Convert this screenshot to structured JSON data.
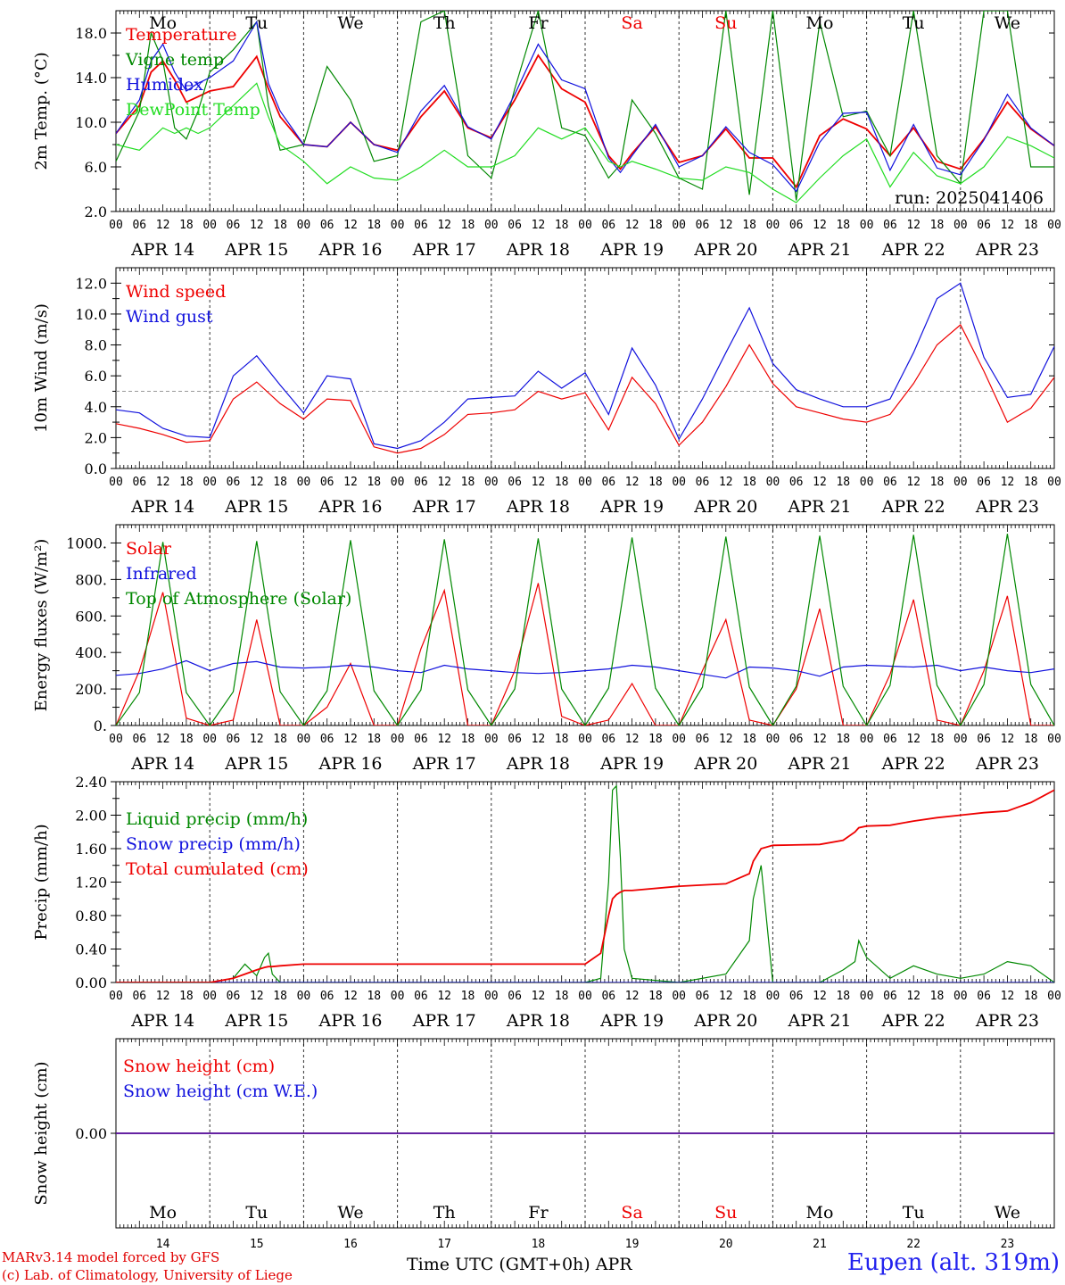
{
  "meta": {
    "credit_line1": "MARv3.14 model forced by GFS",
    "credit_line2": "(c) Lab. of Climatology, University of Liege",
    "station": "Eupen (alt. 319m)",
    "xaxis_title": "Time UTC (GMT+0h) APR",
    "run": "run: 2025041406"
  },
  "colors": {
    "red": "#ee0000",
    "green": "#008800",
    "blue": "#1111dd",
    "light_green": "#22dd22",
    "grid": "#999999",
    "weekend": "#ee0000"
  },
  "days": {
    "weekday": [
      "Mo",
      "Tu",
      "We",
      "Th",
      "Fr",
      "Sa",
      "Su",
      "Mo",
      "Tu",
      "We"
    ],
    "weekend_flags": [
      false,
      false,
      false,
      false,
      false,
      true,
      true,
      false,
      false,
      false
    ],
    "date_labels": [
      "APR 14",
      "APR 15",
      "APR 16",
      "APR 17",
      "APR 18",
      "APR 19",
      "APR 20",
      "APR 21",
      "APR 22",
      "APR 23"
    ],
    "day_numbers": [
      "14",
      "15",
      "16",
      "17",
      "18",
      "19",
      "20",
      "21",
      "22",
      "23"
    ],
    "hour_ticks": [
      "00",
      "06",
      "12",
      "18"
    ],
    "final_tick": "00"
  },
  "chart_data": [
    {
      "id": "temperature",
      "type": "line",
      "ylabel": "2m Temp. (°C)",
      "ylim": [
        2.0,
        20.0
      ],
      "yticks": [
        "2.0",
        "6.0",
        "10.0",
        "14.0",
        "18.0"
      ],
      "ytick_values": [
        2,
        6,
        10,
        14,
        18
      ],
      "x_unit": "hours since APR 14 00 UTC",
      "x": [
        0,
        6,
        9,
        12,
        15,
        18,
        21,
        24,
        30,
        36,
        39,
        42,
        48,
        54,
        60,
        66,
        72,
        78,
        84,
        90,
        96,
        102,
        108,
        114,
        120,
        126,
        129,
        132,
        138,
        144,
        150,
        156,
        162,
        168,
        174,
        180,
        186,
        192,
        198,
        204,
        210,
        216,
        222,
        228,
        234,
        240
      ],
      "series": [
        {
          "name": "Temperature",
          "color": "#ee0000",
          "values": [
            9.0,
            11.5,
            14.5,
            15.5,
            13.8,
            11.8,
            12.3,
            12.8,
            13.2,
            15.9,
            13.0,
            10.5,
            8.0,
            7.8,
            10.0,
            8.0,
            7.5,
            10.5,
            12.8,
            9.5,
            8.6,
            12.0,
            16.0,
            13.0,
            11.8,
            7.0,
            5.8,
            7.2,
            9.6,
            6.4,
            7.0,
            9.4,
            6.8,
            6.8,
            4.2,
            8.8,
            10.3,
            9.4,
            7.0,
            9.5,
            6.5,
            5.8,
            8.5,
            11.8,
            9.4,
            7.9
          ]
        },
        {
          "name": "Vigne temp",
          "color": "#008800",
          "values": [
            6.5,
            11.0,
            18.0,
            15.5,
            9.5,
            8.5,
            11.0,
            14.5,
            16.5,
            19.0,
            11.5,
            7.5,
            8.0,
            15.0,
            12.0,
            6.5,
            7.0,
            19.0,
            20.0,
            7.0,
            5.0,
            13.0,
            20.0,
            9.5,
            8.8,
            5.0,
            6.2,
            12.0,
            9.0,
            5.0,
            4.0,
            20.0,
            3.5,
            20.0,
            3.0,
            19.0,
            10.5,
            11.0,
            7.0,
            20.0,
            7.0,
            4.5,
            20.0,
            20.0,
            6.0,
            6.0
          ]
        },
        {
          "name": "Humidex",
          "color": "#1111dd",
          "values": [
            9.0,
            12.0,
            15.5,
            17.0,
            14.5,
            12.8,
            13.5,
            14.0,
            15.5,
            19.0,
            13.5,
            11.0,
            8.0,
            7.8,
            10.0,
            8.0,
            7.3,
            11.0,
            13.3,
            9.6,
            8.5,
            12.5,
            17.0,
            13.8,
            13.0,
            6.8,
            5.5,
            7.0,
            9.8,
            6.0,
            7.0,
            9.6,
            7.3,
            6.2,
            3.8,
            8.2,
            10.8,
            10.9,
            5.7,
            9.8,
            5.9,
            5.3,
            8.4,
            12.5,
            9.5,
            7.9
          ]
        },
        {
          "name": "DewPoint Temp",
          "color": "#22dd22",
          "values": [
            8.0,
            7.5,
            8.5,
            9.5,
            9.0,
            9.5,
            9.0,
            9.5,
            11.5,
            13.5,
            10.5,
            8.0,
            6.5,
            4.5,
            6.0,
            5.0,
            4.8,
            6.0,
            7.5,
            6.0,
            6.0,
            7.0,
            9.5,
            8.5,
            9.5,
            6.5,
            6.0,
            6.5,
            5.8,
            5.0,
            4.8,
            6.0,
            5.5,
            4.0,
            2.8,
            5.0,
            7.0,
            8.5,
            4.2,
            7.3,
            5.2,
            4.5,
            6.0,
            8.7,
            7.9,
            6.8
          ]
        }
      ]
    },
    {
      "id": "wind",
      "type": "line",
      "ylabel": "10m Wind (m/s)",
      "ylim": [
        0.0,
        13.0
      ],
      "yticks": [
        "0.0",
        "2.0",
        "4.0",
        "6.0",
        "8.0",
        "10.0",
        "12.0"
      ],
      "ytick_values": [
        0,
        2,
        4,
        6,
        8,
        10,
        12
      ],
      "reference_line": 5.0,
      "x_unit": "hours since APR 14 00 UTC",
      "x": [
        0,
        6,
        12,
        18,
        24,
        30,
        36,
        42,
        48,
        54,
        60,
        66,
        72,
        78,
        84,
        90,
        96,
        102,
        108,
        114,
        120,
        126,
        132,
        138,
        144,
        150,
        156,
        162,
        168,
        174,
        180,
        186,
        192,
        198,
        204,
        210,
        216,
        222,
        228,
        234,
        240
      ],
      "series": [
        {
          "name": "Wind speed",
          "color": "#ee0000",
          "values": [
            2.9,
            2.6,
            2.2,
            1.7,
            1.8,
            4.5,
            5.6,
            4.2,
            3.2,
            4.5,
            4.4,
            1.4,
            1.0,
            1.3,
            2.2,
            3.5,
            3.6,
            3.8,
            5.0,
            4.5,
            4.9,
            2.5,
            5.9,
            4.2,
            1.5,
            3.0,
            5.3,
            8.0,
            5.5,
            4.0,
            3.6,
            3.2,
            3.0,
            3.5,
            5.5,
            8.0,
            9.3,
            6.3,
            3.0,
            3.9,
            5.9
          ]
        },
        {
          "name": "Wind gust",
          "color": "#1111dd",
          "values": [
            3.8,
            3.6,
            2.6,
            2.1,
            2.0,
            6.0,
            7.3,
            5.4,
            3.6,
            6.0,
            5.8,
            1.6,
            1.3,
            1.8,
            3.0,
            4.5,
            4.6,
            4.7,
            6.3,
            5.2,
            6.2,
            3.5,
            7.8,
            5.4,
            1.9,
            4.5,
            7.5,
            10.4,
            6.8,
            5.1,
            4.5,
            4.0,
            4.0,
            4.5,
            7.5,
            11.0,
            12.0,
            7.2,
            4.6,
            4.8,
            7.9
          ]
        }
      ]
    },
    {
      "id": "energy",
      "type": "line",
      "ylabel": "Energy fluxes (W/m²)",
      "ylim": [
        0,
        1100
      ],
      "yticks": [
        "0.",
        "200.",
        "400.",
        "600.",
        "800.",
        "1000."
      ],
      "ytick_values": [
        0,
        200,
        400,
        600,
        800,
        1000
      ],
      "x_unit": "hours since APR 14 00 UTC",
      "x": [
        0,
        6,
        12,
        18,
        24,
        30,
        36,
        42,
        48,
        54,
        60,
        66,
        72,
        78,
        84,
        90,
        96,
        102,
        108,
        114,
        120,
        126,
        132,
        138,
        144,
        150,
        156,
        162,
        168,
        174,
        180,
        186,
        192,
        198,
        204,
        210,
        216,
        222,
        228,
        234,
        240
      ],
      "series": [
        {
          "name": "Solar",
          "color": "#ee0000",
          "values": [
            0,
            300,
            730,
            40,
            0,
            30,
            580,
            0,
            0,
            100,
            340,
            0,
            0,
            420,
            740,
            0,
            0,
            300,
            780,
            50,
            0,
            30,
            230,
            0,
            0,
            300,
            580,
            30,
            0,
            200,
            640,
            0,
            0,
            280,
            690,
            30,
            0,
            300,
            710,
            0,
            0
          ]
        },
        {
          "name": "Infrared",
          "color": "#1111dd",
          "values": [
            275,
            285,
            310,
            355,
            300,
            340,
            350,
            320,
            315,
            320,
            330,
            320,
            300,
            290,
            330,
            310,
            300,
            290,
            285,
            290,
            300,
            310,
            330,
            320,
            300,
            280,
            260,
            320,
            315,
            300,
            270,
            320,
            330,
            325,
            320,
            330,
            300,
            320,
            300,
            290,
            310
          ]
        },
        {
          "name": "Top of Atmosphere (Solar)",
          "color": "#008800",
          "values": [
            0,
            180,
            1005,
            180,
            0,
            185,
            1010,
            185,
            0,
            190,
            1015,
            190,
            0,
            195,
            1020,
            195,
            0,
            200,
            1025,
            200,
            0,
            205,
            1030,
            205,
            0,
            210,
            1035,
            210,
            0,
            215,
            1040,
            215,
            0,
            220,
            1045,
            220,
            0,
            225,
            1050,
            225,
            0
          ]
        }
      ]
    },
    {
      "id": "precip",
      "type": "line",
      "ylabel": "Precip (mm/h)",
      "ylim": [
        0.0,
        2.4
      ],
      "yticks": [
        "0.00",
        "0.40",
        "0.80",
        "1.20",
        "1.60",
        "2.00",
        "2.40"
      ],
      "ytick_values": [
        0,
        0.4,
        0.8,
        1.2,
        1.6,
        2.0,
        2.4
      ],
      "x_unit": "hours since APR 14 00 UTC",
      "x": [
        0,
        24,
        30,
        33,
        36,
        38,
        39,
        40,
        42,
        48,
        120,
        124,
        126,
        127,
        128,
        129,
        130,
        132,
        144,
        156,
        162,
        163,
        165,
        168,
        180,
        186,
        189,
        190,
        192,
        198,
        204,
        210,
        216,
        222,
        228,
        234,
        240
      ],
      "series": [
        {
          "name": "Liquid precip (mm/h)",
          "color": "#008800",
          "values": [
            0.0,
            0.0,
            0.05,
            0.22,
            0.08,
            0.3,
            0.35,
            0.1,
            0.0,
            0.0,
            0.0,
            0.05,
            1.2,
            2.3,
            2.35,
            1.5,
            0.4,
            0.05,
            0.0,
            0.1,
            0.5,
            1.0,
            1.4,
            0.0,
            0.0,
            0.15,
            0.25,
            0.5,
            0.3,
            0.05,
            0.2,
            0.1,
            0.05,
            0.1,
            0.25,
            0.2,
            0.0
          ]
        },
        {
          "name": "Snow precip (mm/h)",
          "color": "#1111dd",
          "values": [
            0,
            0,
            0,
            0,
            0,
            0,
            0,
            0,
            0,
            0,
            0,
            0,
            0,
            0,
            0,
            0,
            0,
            0,
            0,
            0,
            0,
            0,
            0,
            0,
            0,
            0,
            0,
            0,
            0,
            0,
            0,
            0,
            0,
            0,
            0,
            0,
            0
          ]
        },
        {
          "name": "Total cumulated (cm)",
          "color": "#ee0000",
          "values": [
            0.0,
            0.0,
            0.05,
            0.1,
            0.15,
            0.18,
            0.19,
            0.19,
            0.2,
            0.22,
            0.22,
            0.35,
            0.8,
            1.0,
            1.05,
            1.08,
            1.1,
            1.1,
            1.15,
            1.18,
            1.3,
            1.45,
            1.6,
            1.64,
            1.65,
            1.7,
            1.8,
            1.85,
            1.87,
            1.88,
            1.93,
            1.97,
            2.0,
            2.03,
            2.05,
            2.15,
            2.3
          ]
        }
      ]
    },
    {
      "id": "snow",
      "type": "line",
      "ylabel": "Snow height (cm)",
      "ylim": [
        -1.0,
        1.0
      ],
      "yticks": [
        "0.00"
      ],
      "ytick_values": [
        0
      ],
      "x_unit": "hours since APR 14 00 UTC",
      "x": [
        0,
        240
      ],
      "series": [
        {
          "name": "Snow height (cm)",
          "color": "#ee0000",
          "values": [
            0,
            0
          ]
        },
        {
          "name": "Snow height (cm W.E.)",
          "color": "#1111dd",
          "values": [
            0,
            0
          ]
        }
      ]
    }
  ]
}
